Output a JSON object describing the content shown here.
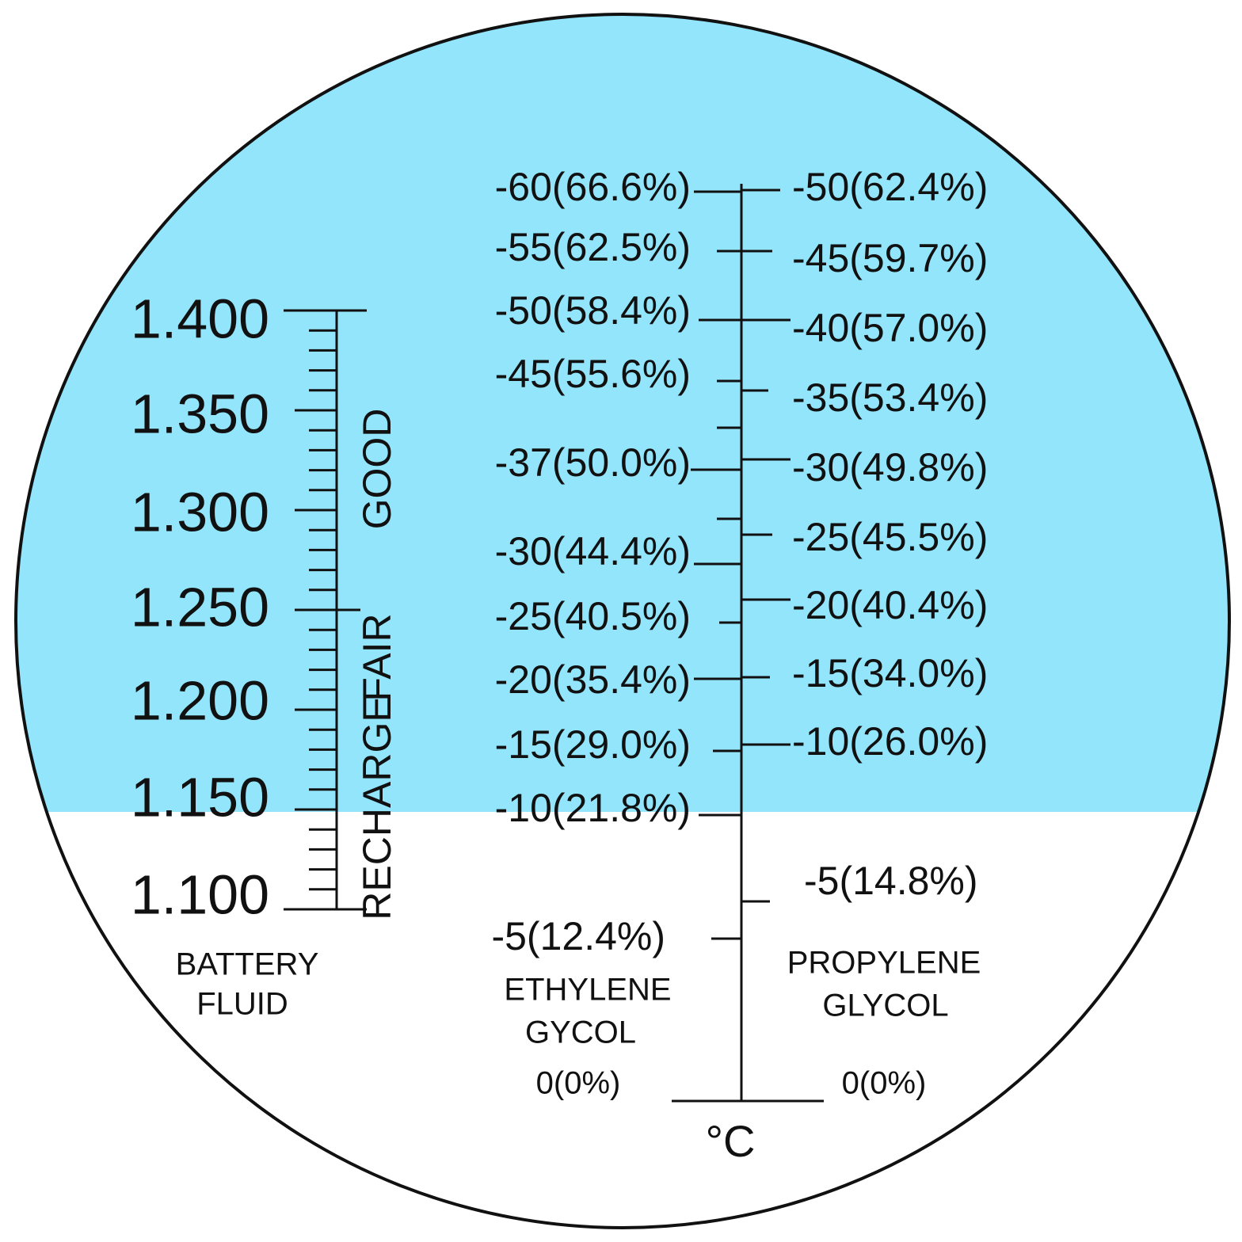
{
  "battery_fluid": {
    "labels": [
      "1.400",
      "1.350",
      "1.300",
      "1.250",
      "1.200",
      "1.150",
      "1.100"
    ],
    "zones": [
      "GOOD",
      "FAIR",
      "RECHARGE"
    ],
    "title": [
      "BATTERY",
      "FLUID"
    ]
  },
  "ethylene_glycol": {
    "labels": [
      "-60(66.6%)",
      "-55(62.5%)",
      "-50(58.4%)",
      "-45(55.6%)",
      "-37(50.0%)",
      "-30(44.4%)",
      "-25(40.5%)",
      "-20(35.4%)",
      "-15(29.0%)",
      "-10(21.8%)",
      "-5(12.4%)"
    ],
    "title": [
      "ETHYLENE",
      "GYCOL"
    ],
    "zero": "0(0%)"
  },
  "propylene_glycol": {
    "labels": [
      "-50(62.4%)",
      "-45(59.7%)",
      "-40(57.0%)",
      "-35(53.4%)",
      "-30(49.8%)",
      "-25(45.5%)",
      "-20(40.4%)",
      "-15(34.0%)",
      "-10(26.0%)",
      "-5(14.8%)"
    ],
    "title": [
      "PROPYLENE",
      "GLYCOL"
    ],
    "zero": "0(0%)"
  },
  "unit": "°C"
}
